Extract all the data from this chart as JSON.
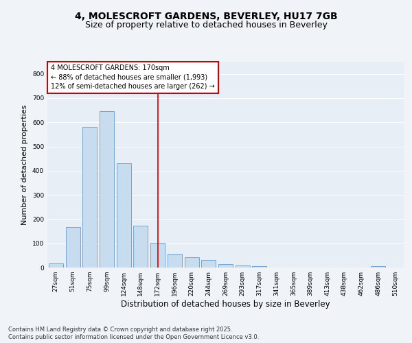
{
  "title_line1": "4, MOLESCROFT GARDENS, BEVERLEY, HU17 7GB",
  "title_line2": "Size of property relative to detached houses in Beverley",
  "xlabel": "Distribution of detached houses by size in Beverley",
  "ylabel": "Number of detached properties",
  "categories": [
    "27sqm",
    "51sqm",
    "75sqm",
    "99sqm",
    "124sqm",
    "148sqm",
    "172sqm",
    "196sqm",
    "220sqm",
    "244sqm",
    "269sqm",
    "293sqm",
    "317sqm",
    "341sqm",
    "365sqm",
    "389sqm",
    "413sqm",
    "438sqm",
    "462sqm",
    "486sqm",
    "510sqm"
  ],
  "values": [
    18,
    168,
    580,
    645,
    430,
    172,
    103,
    57,
    43,
    32,
    13,
    9,
    5,
    0,
    0,
    0,
    0,
    0,
    0,
    7,
    0
  ],
  "bar_color": "#c8dcf0",
  "bar_edge_color": "#6699cc",
  "vline_index": 6,
  "vline_color": "#cc0000",
  "annotation_text": "4 MOLESCROFT GARDENS: 170sqm\n← 88% of detached houses are smaller (1,993)\n12% of semi-detached houses are larger (262) →",
  "annotation_box_color": "#ffffff",
  "annotation_box_edge_color": "#cc0000",
  "ylim": [
    0,
    850
  ],
  "yticks": [
    0,
    100,
    200,
    300,
    400,
    500,
    600,
    700,
    800
  ],
  "background_color": "#f0f4f8",
  "plot_background_color": "#e8eef6",
  "grid_color": "#ffffff",
  "footer_line1": "Contains HM Land Registry data © Crown copyright and database right 2025.",
  "footer_line2": "Contains public sector information licensed under the Open Government Licence v3.0.",
  "title_fontsize": 10,
  "subtitle_fontsize": 9,
  "axis_label_fontsize": 8,
  "tick_fontsize": 6.5,
  "annotation_fontsize": 7,
  "footer_fontsize": 6
}
